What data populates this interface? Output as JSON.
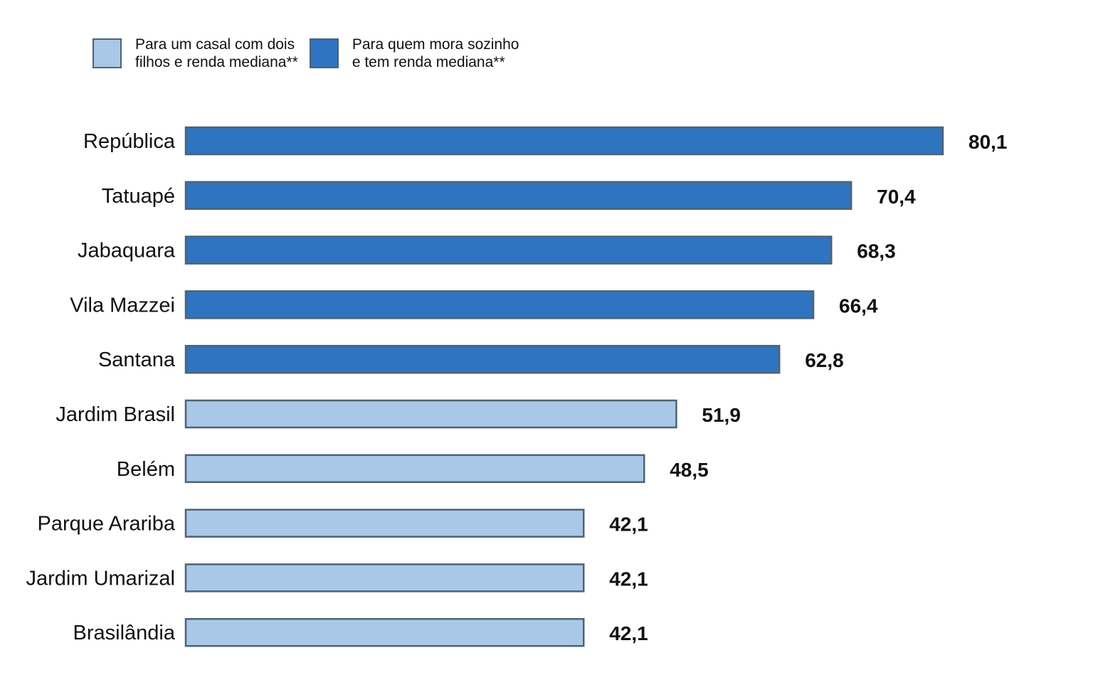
{
  "chart_data": {
    "type": "bar",
    "orientation": "horizontal",
    "title": "",
    "xlabel": "",
    "ylabel": "",
    "xlim": [
      0,
      80.1
    ],
    "grid": false,
    "legend_position": "top-left",
    "legend": [
      {
        "key": "couple",
        "label": "Para um casal com dois\nfilhos e renda mediana**",
        "color": "#a9c8e8"
      },
      {
        "key": "single",
        "label": "Para quem mora sozinho\ne tem renda mediana**",
        "color": "#2e74c0"
      }
    ],
    "categories": [
      "República",
      "Tatuapé",
      "Jabaquara",
      "Vila Mazzei",
      "Santana",
      "Jardim Brasil",
      "Belém",
      "Parque Arariba",
      "Jardim Umarizal",
      "Brasilândia"
    ],
    "values": [
      80.1,
      70.4,
      68.3,
      66.4,
      62.8,
      51.9,
      48.5,
      42.1,
      42.1,
      42.1
    ],
    "value_labels": [
      "80,1",
      "70,4",
      "68,3",
      "66,4",
      "62,8",
      "51,9",
      "48,5",
      "42,1",
      "42,1",
      "42,1"
    ],
    "series_of_bar": [
      "single",
      "single",
      "single",
      "single",
      "single",
      "couple",
      "couple",
      "couple",
      "couple",
      "couple"
    ],
    "bar_border_color": "#4f6273"
  }
}
